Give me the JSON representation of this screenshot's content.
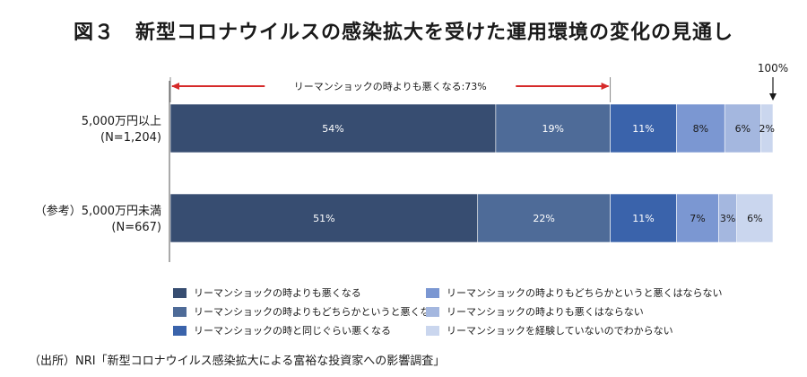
{
  "title": "図３　新型コロナウイルスの感染拡大を受けた運用環境の変化の見通し",
  "source": "（出所）NRI「新型コロナウイルス感染拡大による富裕な投資家への影響調査」",
  "annotation_text": "リーマンショックの時よりも悪くなる:73%",
  "annotation_100": "100%",
  "chart_data": {
    "type": "bar",
    "orientation": "horizontal",
    "stacked": true,
    "xlim": [
      0,
      100
    ],
    "title": "図３　新型コロナウイルスの感染拡大を受けた運用環境の変化の見通し",
    "categories": [
      {
        "line1": "5,000万円以上",
        "line2": "(N=1,204)"
      },
      {
        "line1": "（参考）5,000万円未満",
        "line2": "(N=667)"
      }
    ],
    "series": [
      {
        "name": "リーマンショックの時よりも悪くなる",
        "color": "#374d71",
        "label_color": "#ffffff",
        "values": [
          54,
          51
        ]
      },
      {
        "name": "リーマンショックの時よりもどちらかというと悪くなる",
        "color": "#4e6b98",
        "label_color": "#ffffff",
        "values": [
          19,
          22
        ]
      },
      {
        "name": "リーマンショックの時と同じぐらい悪くなる",
        "color": "#3a63ab",
        "label_color": "#ffffff",
        "values": [
          11,
          11
        ]
      },
      {
        "name": "リーマンショックの時よりもどちらかというと悪くはならない",
        "color": "#7b97d2",
        "label_color": "#1a1a1a",
        "values": [
          8,
          7
        ]
      },
      {
        "name": "リーマンショックの時よりも悪くはならない",
        "color": "#a4b7df",
        "label_color": "#1a1a1a",
        "values": [
          6,
          3
        ]
      },
      {
        "name": "リーマンショックを経験していないのでわからない",
        "color": "#cad6ee",
        "label_color": "#1a1a1a",
        "values": [
          2,
          6
        ]
      }
    ],
    "data_labels": [
      [
        "54%",
        "19%",
        "11%",
        "8%",
        "6%",
        "2%"
      ],
      [
        "51%",
        "22%",
        "11%",
        "7%",
        "3%",
        "6%"
      ]
    ],
    "annotation": {
      "label": "リーマンショックの時よりも悪くなる:73%",
      "value": 73,
      "arrow_color": "#d62a2a"
    },
    "legend": "bottom"
  }
}
